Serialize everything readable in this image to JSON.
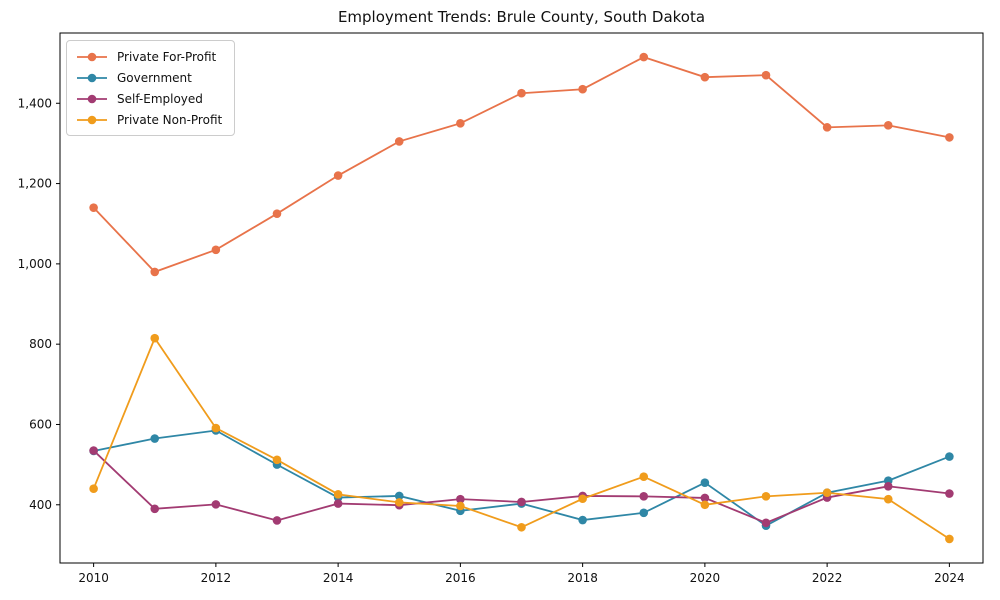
{
  "figure": {
    "title": "Employment Trends: Brule County, South Dakota"
  },
  "chart_data": {
    "type": "line",
    "title": "Employment Trends: Brule County, South Dakota",
    "xlabel": "",
    "ylabel": "",
    "x": [
      2010,
      2011,
      2012,
      2013,
      2014,
      2015,
      2016,
      2017,
      2018,
      2019,
      2020,
      2021,
      2022,
      2023,
      2024
    ],
    "xticks": [
      2010,
      2012,
      2014,
      2016,
      2018,
      2020,
      2022,
      2024
    ],
    "yticks": [
      400,
      600,
      800,
      1000,
      1200,
      1400
    ],
    "ytick_labels": [
      "400",
      "600",
      "800",
      "1,000",
      "1,200",
      "1,400"
    ],
    "xlim": [
      2009.45,
      2024.55
    ],
    "ylim": [
      255,
      1575
    ],
    "grid": false,
    "legend_position": "upper-left",
    "series": [
      {
        "name": "Private For-Profit",
        "color": "#e8734a",
        "values": [
          1140,
          980,
          1035,
          1125,
          1220,
          1305,
          1350,
          1425,
          1435,
          1515,
          1465,
          1470,
          1340,
          1345,
          1315
        ]
      },
      {
        "name": "Government",
        "color": "#2f87a6",
        "values": [
          534,
          565,
          585,
          500,
          418,
          422,
          385,
          403,
          362,
          380,
          455,
          348,
          430,
          460,
          520
        ]
      },
      {
        "name": "Self-Employed",
        "color": "#a23b72",
        "values": [
          535,
          390,
          401,
          361,
          403,
          399,
          414,
          407,
          422,
          421,
          417,
          355,
          418,
          446,
          428
        ]
      },
      {
        "name": "Private Non-Profit",
        "color": "#f09c1c",
        "values": [
          440,
          815,
          591,
          512,
          426,
          406,
          397,
          344,
          415,
          470,
          400,
          421,
          430,
          414,
          315
        ]
      }
    ]
  }
}
